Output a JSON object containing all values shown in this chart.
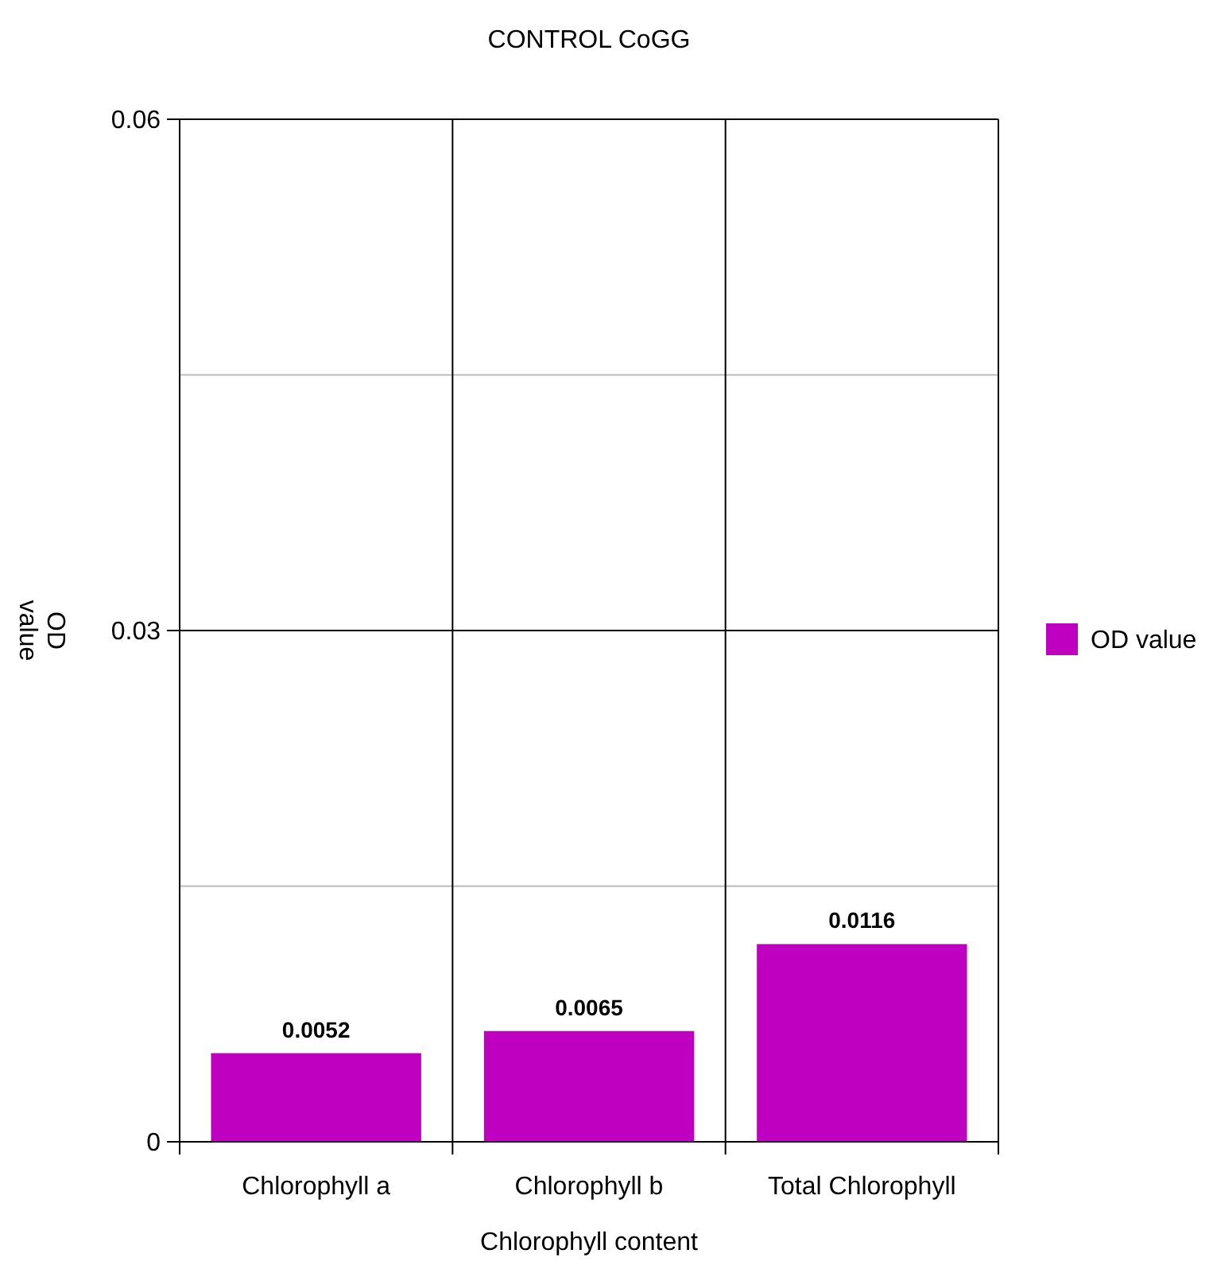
{
  "chart_data": {
    "type": "bar",
    "title": "CONTROL CoGG",
    "xlabel": "Chlorophyll content",
    "ylabel": "OD value",
    "categories": [
      "Chlorophyll a",
      "Chlorophyll b",
      "Total Chlorophyll"
    ],
    "series": [
      {
        "name": "OD value",
        "color": "#c000c0",
        "values": [
          0.0052,
          0.0065,
          0.0116
        ]
      }
    ],
    "ylim": [
      0,
      0.06
    ],
    "yticks": [
      0,
      {
        "value": 0.015,
        "label": null
      },
      0.03,
      {
        "value": 0.045,
        "label": null
      },
      0.06
    ],
    "grid": true,
    "legend": "right",
    "data_labels": true
  }
}
